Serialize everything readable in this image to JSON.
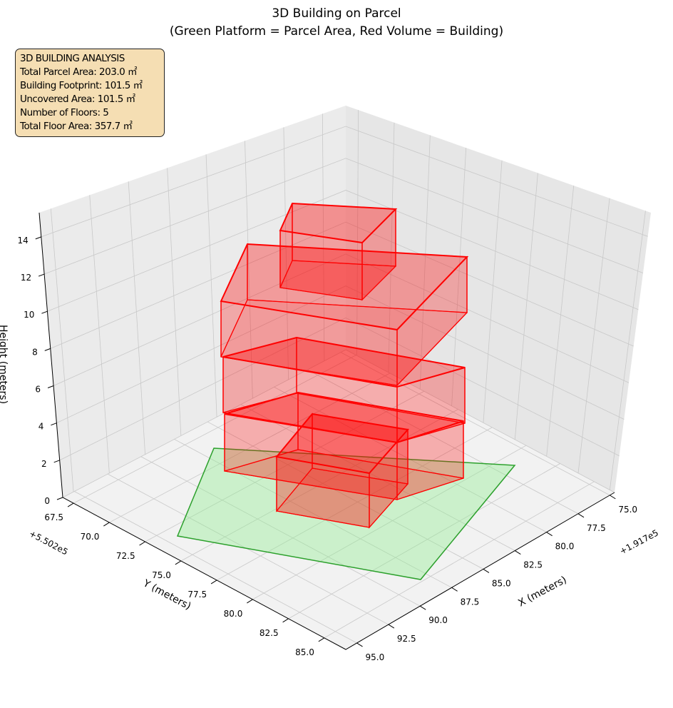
{
  "chart_data": {
    "type": "3d-polygon",
    "title": "3D Building on Parcel",
    "subtitle": "(Green Platform = Parcel Area, Red Volume = Building)",
    "xlabel": "X (meters)",
    "ylabel": "Y (meters)",
    "zlabel": "Height (meters)",
    "x_offset": "+1.917e5",
    "y_offset": "+5.502e5",
    "x_ticks": [
      "75.0",
      "77.5",
      "80.0",
      "82.5",
      "85.0",
      "87.5",
      "90.0",
      "92.5",
      "95.0"
    ],
    "y_ticks": [
      "67.5",
      "70.0",
      "72.5",
      "75.0",
      "77.5",
      "80.0",
      "82.5",
      "85.0"
    ],
    "z_ticks": [
      "0",
      "2",
      "4",
      "6",
      "8",
      "10",
      "12",
      "14"
    ],
    "grid": true,
    "colors": {
      "parcel": "#2ca02c",
      "parcel_fill": "#90ee90",
      "building": "#ff0000"
    }
  },
  "info": {
    "lines": [
      "3D BUILDING ANALYSIS",
      "Total Parcel Area: 203.0 ㎡",
      "Building Footprint: 101.5 ㎡",
      "Uncovered Area: 101.5 ㎡",
      "Number of Floors: 5",
      "Total Floor Area: 357.7 ㎡"
    ]
  }
}
